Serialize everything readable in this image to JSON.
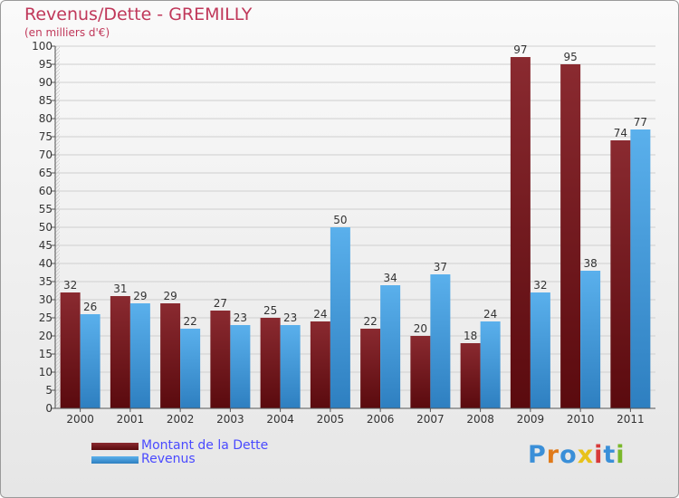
{
  "title": "Revenus/Dette - GREMILLY",
  "subtitle": "(en milliers d'€)",
  "watermark": "Proxiti",
  "colors": {
    "dette": "#7a1a1e",
    "revenus": "#4aa3e0",
    "title": "#c0385a",
    "legend_text": "#4a4aff"
  },
  "chart_data": {
    "type": "bar",
    "categories": [
      "2000",
      "2001",
      "2002",
      "2003",
      "2004",
      "2005",
      "2006",
      "2007",
      "2008",
      "2009",
      "2010",
      "2011"
    ],
    "series": [
      {
        "name": "Montant de la Dette",
        "values": [
          32,
          31,
          29,
          27,
          25,
          24,
          22,
          20,
          18,
          97,
          95,
          74
        ]
      },
      {
        "name": "Revenus",
        "values": [
          26,
          29,
          22,
          23,
          23,
          50,
          34,
          37,
          24,
          32,
          38,
          77
        ]
      }
    ],
    "ylim": [
      0,
      100
    ],
    "ytick_step": 5,
    "grid": true,
    "legend_position": "bottom-left"
  }
}
